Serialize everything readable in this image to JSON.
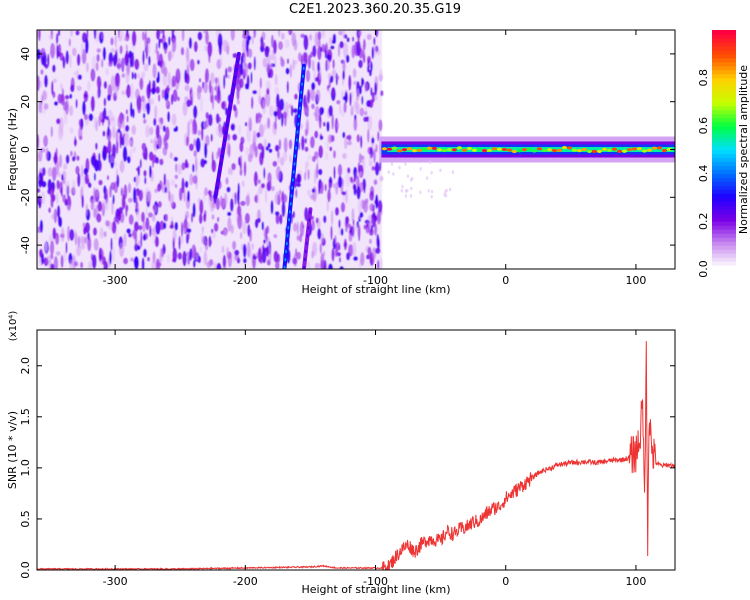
{
  "title": "C2E1.2023.360.20.35.G19",
  "chart_data": [
    {
      "type": "heatmap",
      "xlabel": "Height of straight line (km)",
      "ylabel": "Frequency (Hz)",
      "xlim": [
        -360,
        130
      ],
      "ylim": [
        -50,
        50
      ],
      "xticks": [
        -300,
        -200,
        -100,
        0,
        100
      ],
      "yticks": [
        -40,
        -20,
        0,
        20,
        40
      ],
      "colorbar": {
        "label": "Normalized spectral amplitude",
        "range": [
          0.0,
          1.0
        ],
        "ticks": [
          "0.0",
          "0.2",
          "0.4",
          "0.6",
          "0.8"
        ],
        "tick_values": [
          0.0,
          0.2,
          0.4,
          0.6,
          0.8
        ],
        "colormap": [
          "#ffffff",
          "#c98cf0",
          "#7b00e6",
          "#1f00ff",
          "#0070ff",
          "#00e0ff",
          "#00ff40",
          "#c8ff00",
          "#ffd000",
          "#ff5000",
          "#ff0040"
        ]
      },
      "noise_region_x": [
        -360,
        -95
      ],
      "features": [
        {
          "name": "",
          "x": [
            -223,
            -205
          ],
          "y": [
            -20,
            40
          ],
          "amplitude": 0.25
        },
        {
          "name": "",
          "x": [
            -170,
            -155
          ],
          "y": [
            -50,
            35
          ],
          "amplitude": 0.35
        },
        {
          "name": "",
          "x": [
            -155,
            -150
          ],
          "y": [
            -50,
            -25
          ],
          "amplitude": 0.2
        }
      ],
      "carrier": {
        "x": [
          -97,
          130
        ],
        "center_y": 0,
        "amplitude": 0.8
      }
    },
    {
      "type": "line",
      "xlabel": "Height of straight line (km)",
      "ylabel": "SNR (10 * v/v)",
      "ylabel_scale": "(x10⁴)",
      "xlim": [
        -360,
        130
      ],
      "ylim": [
        0,
        2.35
      ],
      "xticks": [
        -300,
        -200,
        -100,
        0,
        100
      ],
      "yticks": [
        "0.0",
        "0.5",
        "1.0",
        "1.5",
        "2.0"
      ],
      "ytick_values": [
        0.0,
        0.5,
        1.0,
        1.5,
        2.0
      ],
      "color": "#ee3333",
      "series": [
        {
          "x": [
            -360,
            -300,
            -250,
            -200,
            -150,
            -140,
            -130,
            -110,
            -100,
            -95,
            -90,
            -85,
            -80,
            -75,
            -70,
            -65,
            -60,
            -55,
            -50,
            -45,
            -40,
            -35,
            -30,
            -25,
            -20,
            -15,
            -10,
            -5,
            0,
            5,
            10,
            15,
            20,
            25,
            30,
            35,
            40,
            50,
            60,
            70,
            80,
            90,
            95,
            100,
            103,
            105,
            107,
            108,
            109,
            110,
            112,
            115,
            120,
            125,
            130
          ],
          "y": [
            0.01,
            0.01,
            0.01,
            0.02,
            0.03,
            0.04,
            0.02,
            0.02,
            0.02,
            0.02,
            0.03,
            0.12,
            0.2,
            0.25,
            0.18,
            0.25,
            0.3,
            0.3,
            0.28,
            0.38,
            0.35,
            0.4,
            0.42,
            0.47,
            0.48,
            0.55,
            0.6,
            0.62,
            0.7,
            0.75,
            0.8,
            0.85,
            0.9,
            0.95,
            0.98,
            1.0,
            1.03,
            1.05,
            1.06,
            1.05,
            1.07,
            1.08,
            1.1,
            1.15,
            1.3,
            1.6,
            0.75,
            2.35,
            0.25,
            1.55,
            1.2,
            1.05,
            1.02,
            1.03,
            1.02
          ]
        }
      ]
    }
  ]
}
